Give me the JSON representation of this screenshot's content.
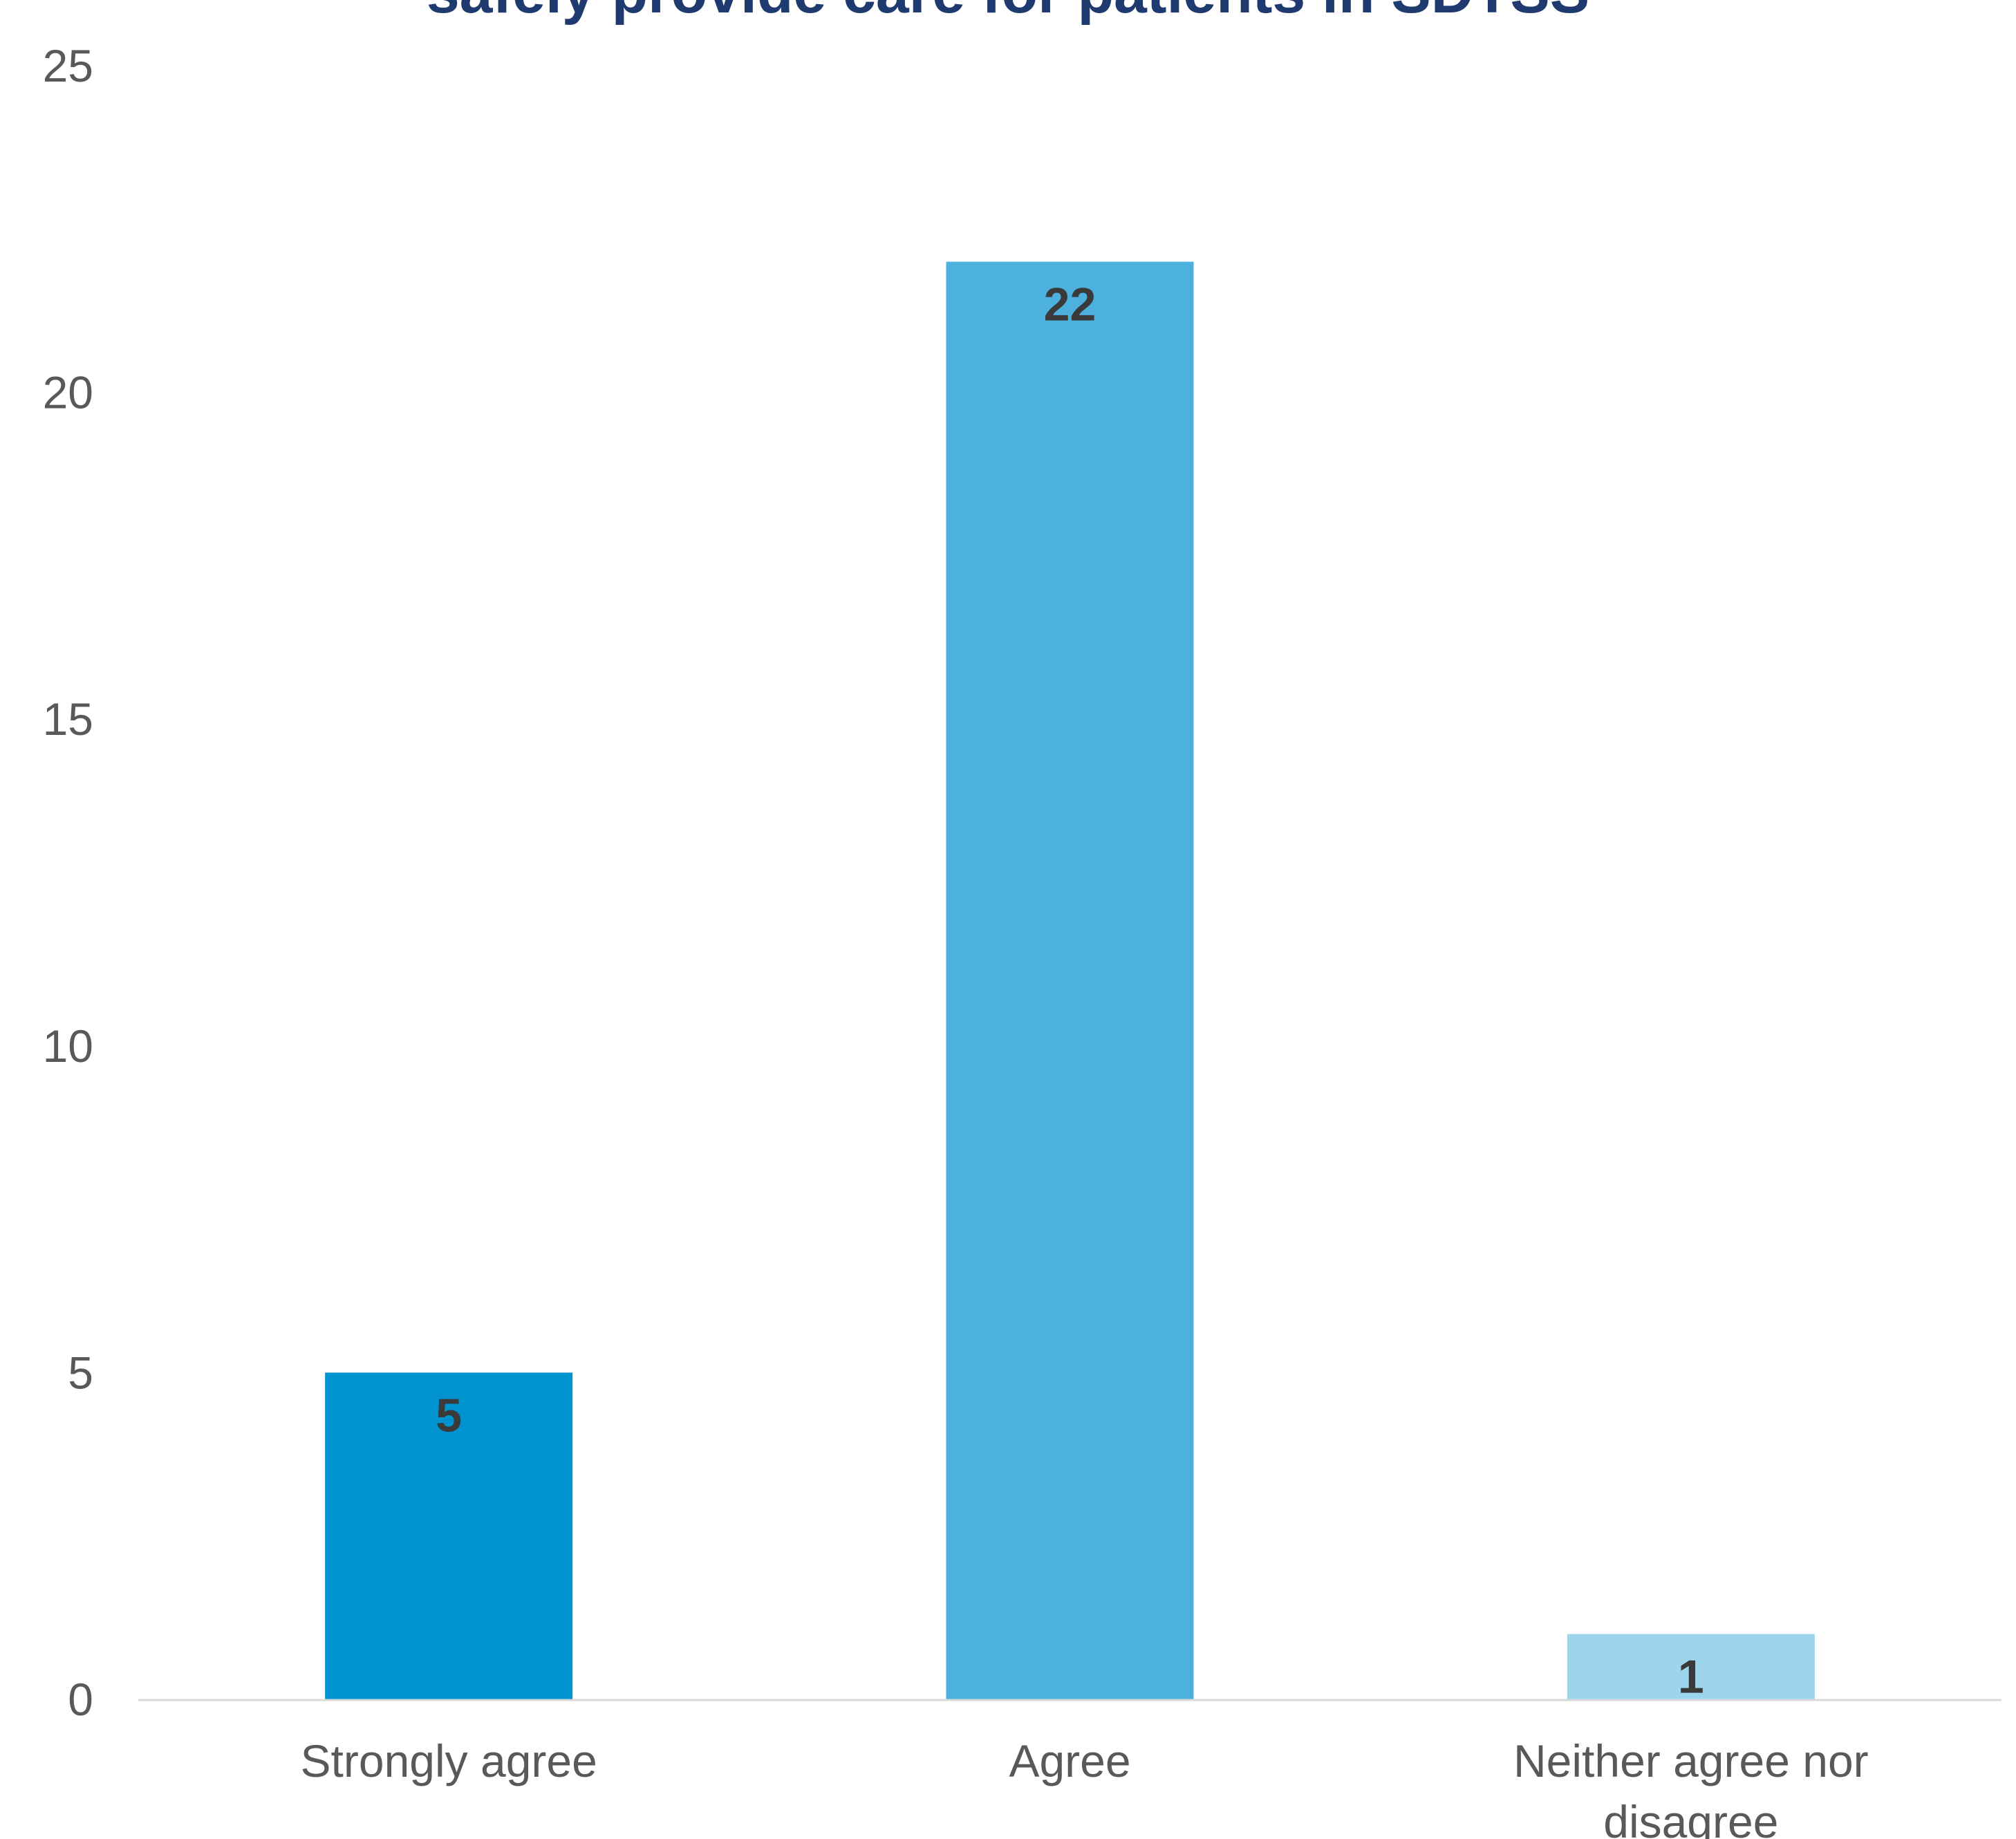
{
  "chart_data": {
    "type": "bar",
    "title": "safely provide care for patients in SDTSS",
    "xlabel": "",
    "ylabel": "",
    "categories": [
      [
        "Strongly agree"
      ],
      [
        "Agree"
      ],
      [
        "Neither agree nor",
        "disagree"
      ]
    ],
    "values": [
      5,
      22,
      1
    ],
    "data_labels": [
      "5",
      "22",
      "1"
    ],
    "bar_colors": [
      "#0093d0",
      "#4db1e0",
      "#9dd5ed"
    ],
    "ylim": [
      0,
      25
    ],
    "yticks": [
      0,
      5,
      10,
      15,
      20,
      25
    ],
    "ytick_labels": [
      "0",
      "5",
      "10",
      "15",
      "20",
      "25"
    ],
    "grid": false,
    "legend": "none",
    "colors": {
      "title": "#1f3a6e",
      "axis_text": "#595959",
      "data_label": "#3a3a3a",
      "axis_line": "#d9d9d9"
    }
  }
}
